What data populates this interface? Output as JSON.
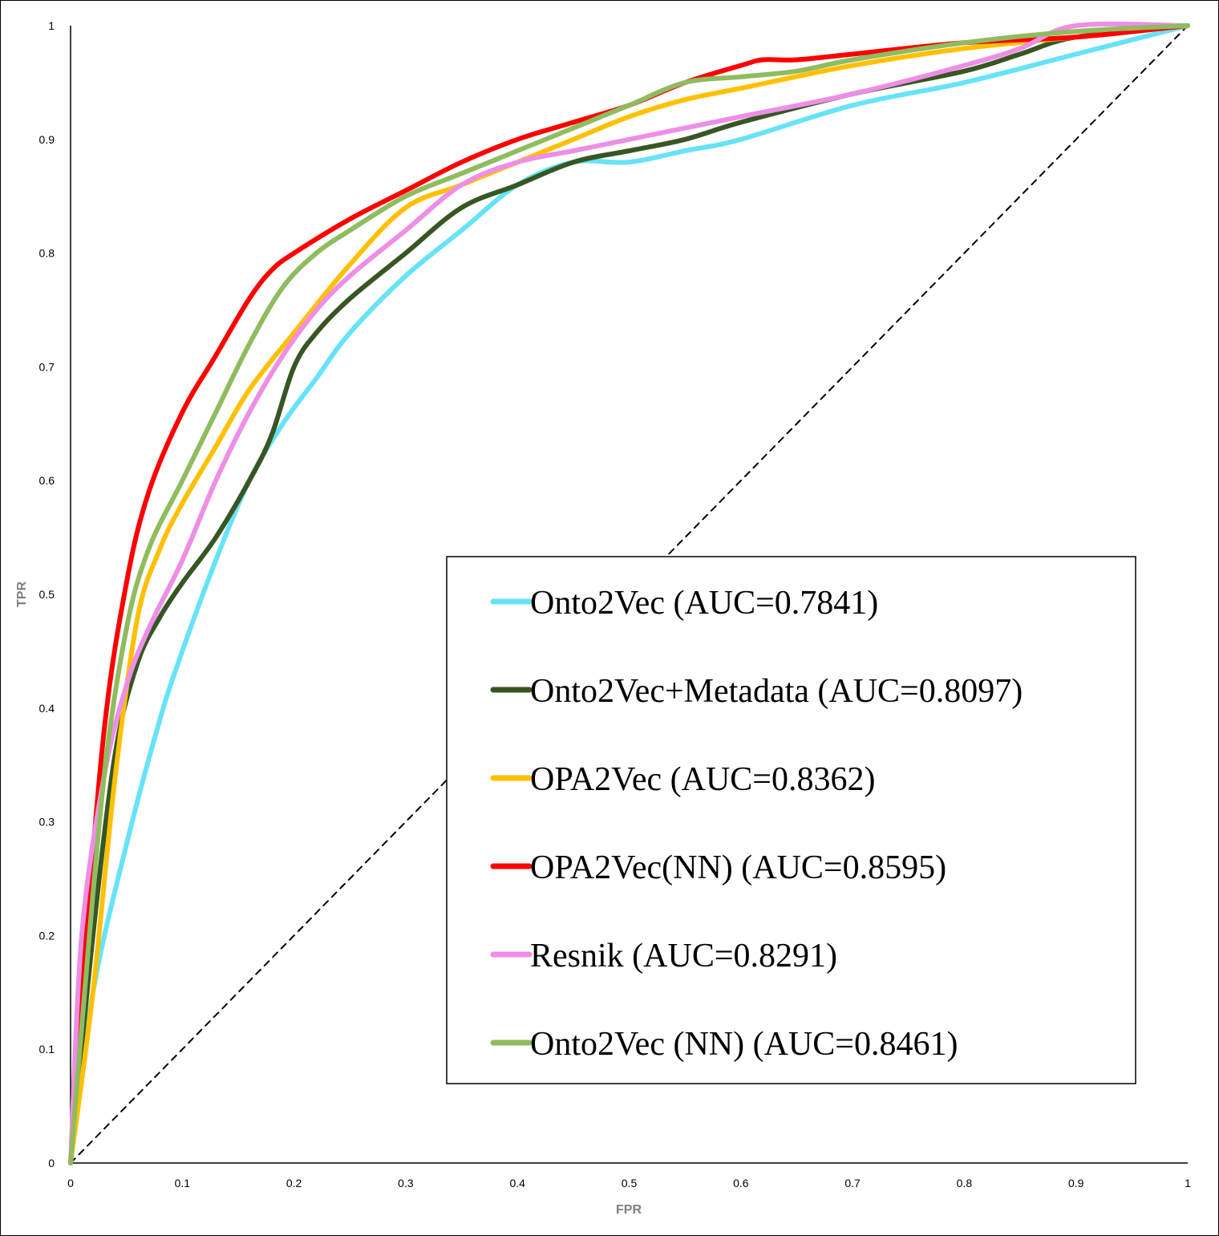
{
  "chart_data": {
    "type": "line",
    "xlabel": "FPR",
    "ylabel": "TPR",
    "xlim": [
      0,
      1
    ],
    "ylim": [
      0,
      1
    ],
    "xticks": [
      "0",
      "0.1",
      "0.2",
      "0.3",
      "0.4",
      "0.5",
      "0.6",
      "0.7",
      "0.8",
      "0.9",
      "1"
    ],
    "yticks": [
      "0",
      "0.1",
      "0.2",
      "0.3",
      "0.4",
      "0.5",
      "0.6",
      "0.7",
      "0.8",
      "0.9",
      "1"
    ],
    "grid": false,
    "legend_position": "bottom-right",
    "series": [
      {
        "name": "Onto2Vec (AUC=0.7841)",
        "color": "#66e3f7",
        "x": [
          0,
          0.02,
          0.05,
          0.08,
          0.1,
          0.13,
          0.16,
          0.19,
          0.22,
          0.25,
          0.3,
          0.35,
          0.4,
          0.45,
          0.5,
          0.55,
          0.6,
          0.7,
          0.8,
          0.9,
          1
        ],
        "y": [
          0,
          0.15,
          0.28,
          0.39,
          0.45,
          0.53,
          0.6,
          0.65,
          0.69,
          0.73,
          0.78,
          0.82,
          0.86,
          0.88,
          0.88,
          0.89,
          0.9,
          0.93,
          0.95,
          0.975,
          1
        ]
      },
      {
        "name": "Onto2Vec+Metadata (AUC=0.8097)",
        "color": "#375623",
        "x": [
          0,
          0.02,
          0.04,
          0.06,
          0.08,
          0.1,
          0.13,
          0.16,
          0.18,
          0.2,
          0.22,
          0.25,
          0.3,
          0.35,
          0.4,
          0.45,
          0.5,
          0.55,
          0.6,
          0.7,
          0.8,
          0.85,
          0.9,
          1
        ],
        "y": [
          0,
          0.2,
          0.36,
          0.44,
          0.48,
          0.51,
          0.55,
          0.6,
          0.64,
          0.7,
          0.73,
          0.76,
          0.8,
          0.84,
          0.86,
          0.88,
          0.89,
          0.9,
          0.915,
          0.94,
          0.96,
          0.975,
          0.99,
          1
        ]
      },
      {
        "name": "OPA2Vec (AUC=0.8362)",
        "color": "#ffc000",
        "x": [
          0,
          0.02,
          0.04,
          0.06,
          0.08,
          0.1,
          0.13,
          0.16,
          0.2,
          0.25,
          0.3,
          0.35,
          0.4,
          0.45,
          0.5,
          0.55,
          0.6,
          0.7,
          0.8,
          0.9,
          1
        ],
        "y": [
          0,
          0.15,
          0.34,
          0.48,
          0.54,
          0.58,
          0.63,
          0.68,
          0.73,
          0.79,
          0.84,
          0.86,
          0.88,
          0.9,
          0.92,
          0.935,
          0.945,
          0.965,
          0.98,
          0.99,
          1
        ]
      },
      {
        "name": "OPA2Vec(NN) (AUC=0.8595)",
        "color": "#ff0000",
        "x": [
          0,
          0.01,
          0.03,
          0.05,
          0.07,
          0.1,
          0.13,
          0.16,
          0.18,
          0.2,
          0.25,
          0.3,
          0.35,
          0.4,
          0.45,
          0.5,
          0.55,
          0.6,
          0.62,
          0.65,
          0.7,
          0.8,
          0.9,
          1
        ],
        "y": [
          0,
          0.15,
          0.38,
          0.51,
          0.59,
          0.66,
          0.71,
          0.76,
          0.785,
          0.8,
          0.83,
          0.855,
          0.88,
          0.9,
          0.915,
          0.93,
          0.95,
          0.965,
          0.97,
          0.97,
          0.975,
          0.985,
          0.99,
          1
        ]
      },
      {
        "name": "Resnik (AUC=0.8291)",
        "color": "#ee8ee6",
        "x": [
          0,
          0.01,
          0.03,
          0.05,
          0.07,
          0.1,
          0.13,
          0.16,
          0.19,
          0.22,
          0.25,
          0.3,
          0.35,
          0.4,
          0.45,
          0.5,
          0.6,
          0.7,
          0.8,
          0.85,
          0.9,
          1
        ],
        "y": [
          0,
          0.2,
          0.34,
          0.42,
          0.47,
          0.53,
          0.6,
          0.66,
          0.71,
          0.75,
          0.78,
          0.82,
          0.86,
          0.88,
          0.89,
          0.9,
          0.92,
          0.94,
          0.965,
          0.98,
          1,
          1
        ]
      },
      {
        "name": "Onto2Vec (NN) (AUC=0.8461)",
        "color": "#8fbc5f",
        "x": [
          0,
          0.01,
          0.03,
          0.05,
          0.07,
          0.1,
          0.13,
          0.16,
          0.19,
          0.22,
          0.25,
          0.3,
          0.35,
          0.4,
          0.45,
          0.5,
          0.55,
          0.6,
          0.65,
          0.7,
          0.8,
          0.9,
          1
        ],
        "y": [
          0,
          0.12,
          0.34,
          0.47,
          0.54,
          0.6,
          0.66,
          0.72,
          0.77,
          0.8,
          0.82,
          0.85,
          0.87,
          0.89,
          0.91,
          0.93,
          0.95,
          0.955,
          0.96,
          0.97,
          0.985,
          0.995,
          1
        ]
      },
      {
        "name": "",
        "color": "#000000",
        "style": "dashed",
        "x": [
          0,
          1
        ],
        "y": [
          0,
          1
        ]
      }
    ]
  }
}
